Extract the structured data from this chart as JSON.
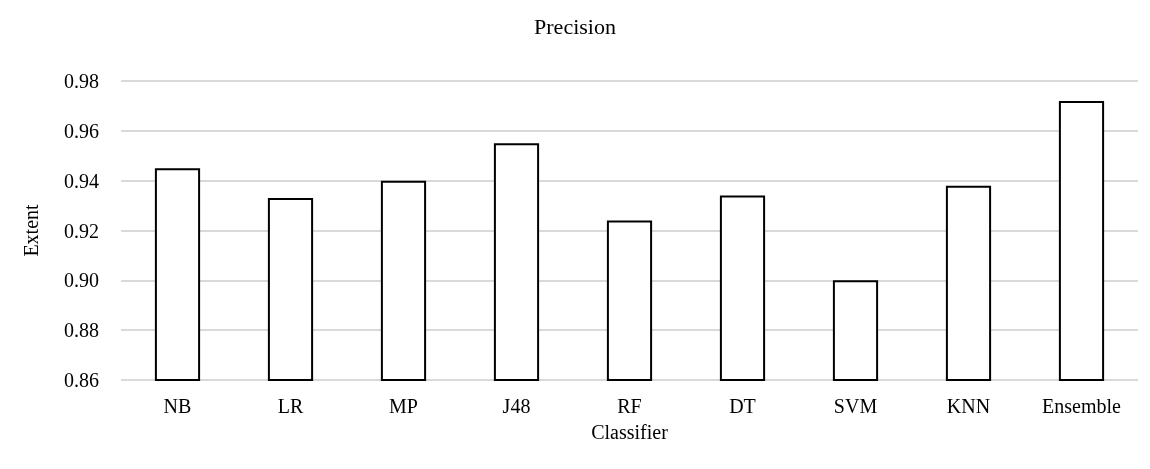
{
  "chart_data": {
    "type": "bar",
    "title": "Precision",
    "xlabel": "Classifier",
    "ylabel": "Extent",
    "categories": [
      "NB",
      "LR",
      "MP",
      "J48",
      "RF",
      "DT",
      "SVM",
      "KNN",
      "Ensemble"
    ],
    "values": [
      0.945,
      0.933,
      0.94,
      0.955,
      0.924,
      0.934,
      0.9,
      0.938,
      0.972
    ],
    "color": "#ffffff",
    "ylim": [
      0.86,
      0.98
    ],
    "yticks": [
      0.86,
      0.88,
      {
        "value": 0.9,
        "label": "0.90"
      },
      0.92,
      0.94,
      0.96,
      0.98
    ],
    "grid": "y"
  }
}
